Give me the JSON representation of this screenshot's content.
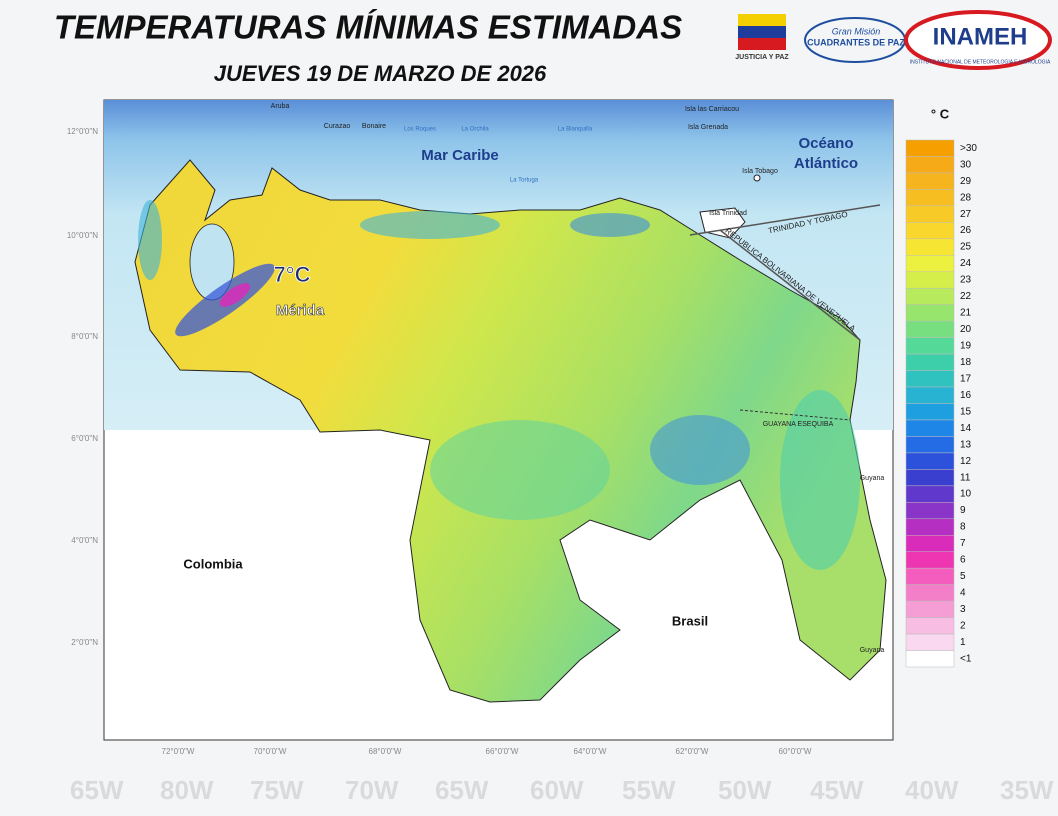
{
  "header": {
    "title": "TEMPERATURAS MÍNIMAS ESTIMADAS",
    "subtitle": "JUEVES 19 DE MARZO DE 2026"
  },
  "logos": {
    "justicia": "JUSTICIA Y PAZ",
    "gran_mision": "Gran Misión",
    "cuadrantes": "CUADRANTES DE PAZ",
    "inameh": "INAMEH",
    "inameh_full": "INSTITUTO NACIONAL DE METEOROLOGIA E HIDROLOGIA"
  },
  "map": {
    "lat_ticks": [
      "12°0'0\"N",
      "10°0'0\"N",
      "8°0'0\"N",
      "6°0'0\"N",
      "4°0'0\"N",
      "2°0'0\"N"
    ],
    "lon_ticks": [
      "72°0'0\"W",
      "70°0'0\"W",
      "68°0'0\"W",
      "66°0'0\"W",
      "64°0'0\"W",
      "62°0'0\"W",
      "60°0'0\"W"
    ],
    "labels": [
      "Aruba",
      "Curazao",
      "Bonaire",
      "Los Roques",
      "La Orchila",
      "La Blanquilla",
      "Isla las Carriacou",
      "Isla Grenada",
      "Mar Caribe",
      "Océano",
      "Atlántico",
      "La Tortuga",
      "Isla Tobago",
      "Isla Trinidad",
      "TRINIDAD Y TOBAGO",
      "REPUBLICA BOLIVARIANA DE VENEZUELA",
      "GUAYANA ESEQUIBA",
      "Guyana",
      "Guyana",
      "Colombia",
      "Brasil"
    ],
    "highlight": {
      "value": "7°C",
      "place": "Mérida"
    }
  },
  "legend": {
    "unit": "° C",
    "items": [
      {
        "label": ">30",
        "color": "#f5a000"
      },
      {
        "label": "30",
        "color": "#f7aa18"
      },
      {
        "label": "29",
        "color": "#f6b41e"
      },
      {
        "label": "28",
        "color": "#f7be22"
      },
      {
        "label": "27",
        "color": "#f8ca28"
      },
      {
        "label": "26",
        "color": "#f9d72c"
      },
      {
        "label": "25",
        "color": "#f7e534"
      },
      {
        "label": "24",
        "color": "#ecf03e"
      },
      {
        "label": "23",
        "color": "#d6ee4a"
      },
      {
        "label": "22",
        "color": "#b8ea5e"
      },
      {
        "label": "21",
        "color": "#98e56d"
      },
      {
        "label": "20",
        "color": "#78df80"
      },
      {
        "label": "19",
        "color": "#55d999"
      },
      {
        "label": "18",
        "color": "#3ccfa9"
      },
      {
        "label": "17",
        "color": "#30c2be"
      },
      {
        "label": "16",
        "color": "#27b3d1"
      },
      {
        "label": "15",
        "color": "#1e9fdf"
      },
      {
        "label": "14",
        "color": "#1e86e6"
      },
      {
        "label": "13",
        "color": "#246ce6"
      },
      {
        "label": "12",
        "color": "#2c52dc"
      },
      {
        "label": "11",
        "color": "#3b3fcf"
      },
      {
        "label": "10",
        "color": "#6038cc"
      },
      {
        "label": "9",
        "color": "#8a34c8"
      },
      {
        "label": "8",
        "color": "#b42fc2"
      },
      {
        "label": "7",
        "color": "#d92cba"
      },
      {
        "label": "6",
        "color": "#ee36b2"
      },
      {
        "label": "5",
        "color": "#f45cbd"
      },
      {
        "label": "4",
        "color": "#f47fc9"
      },
      {
        "label": "3",
        "color": "#f59ed6"
      },
      {
        "label": "2",
        "color": "#f7bde3"
      },
      {
        "label": "1",
        "color": "#fad8ef"
      },
      {
        "label": "<1",
        "color": "#ffffff"
      }
    ]
  },
  "background_labels": [
    "65W",
    "80W",
    "75W",
    "70W",
    "65W",
    "60W",
    "55W",
    "50W",
    "45W",
    "40W",
    "35W"
  ]
}
